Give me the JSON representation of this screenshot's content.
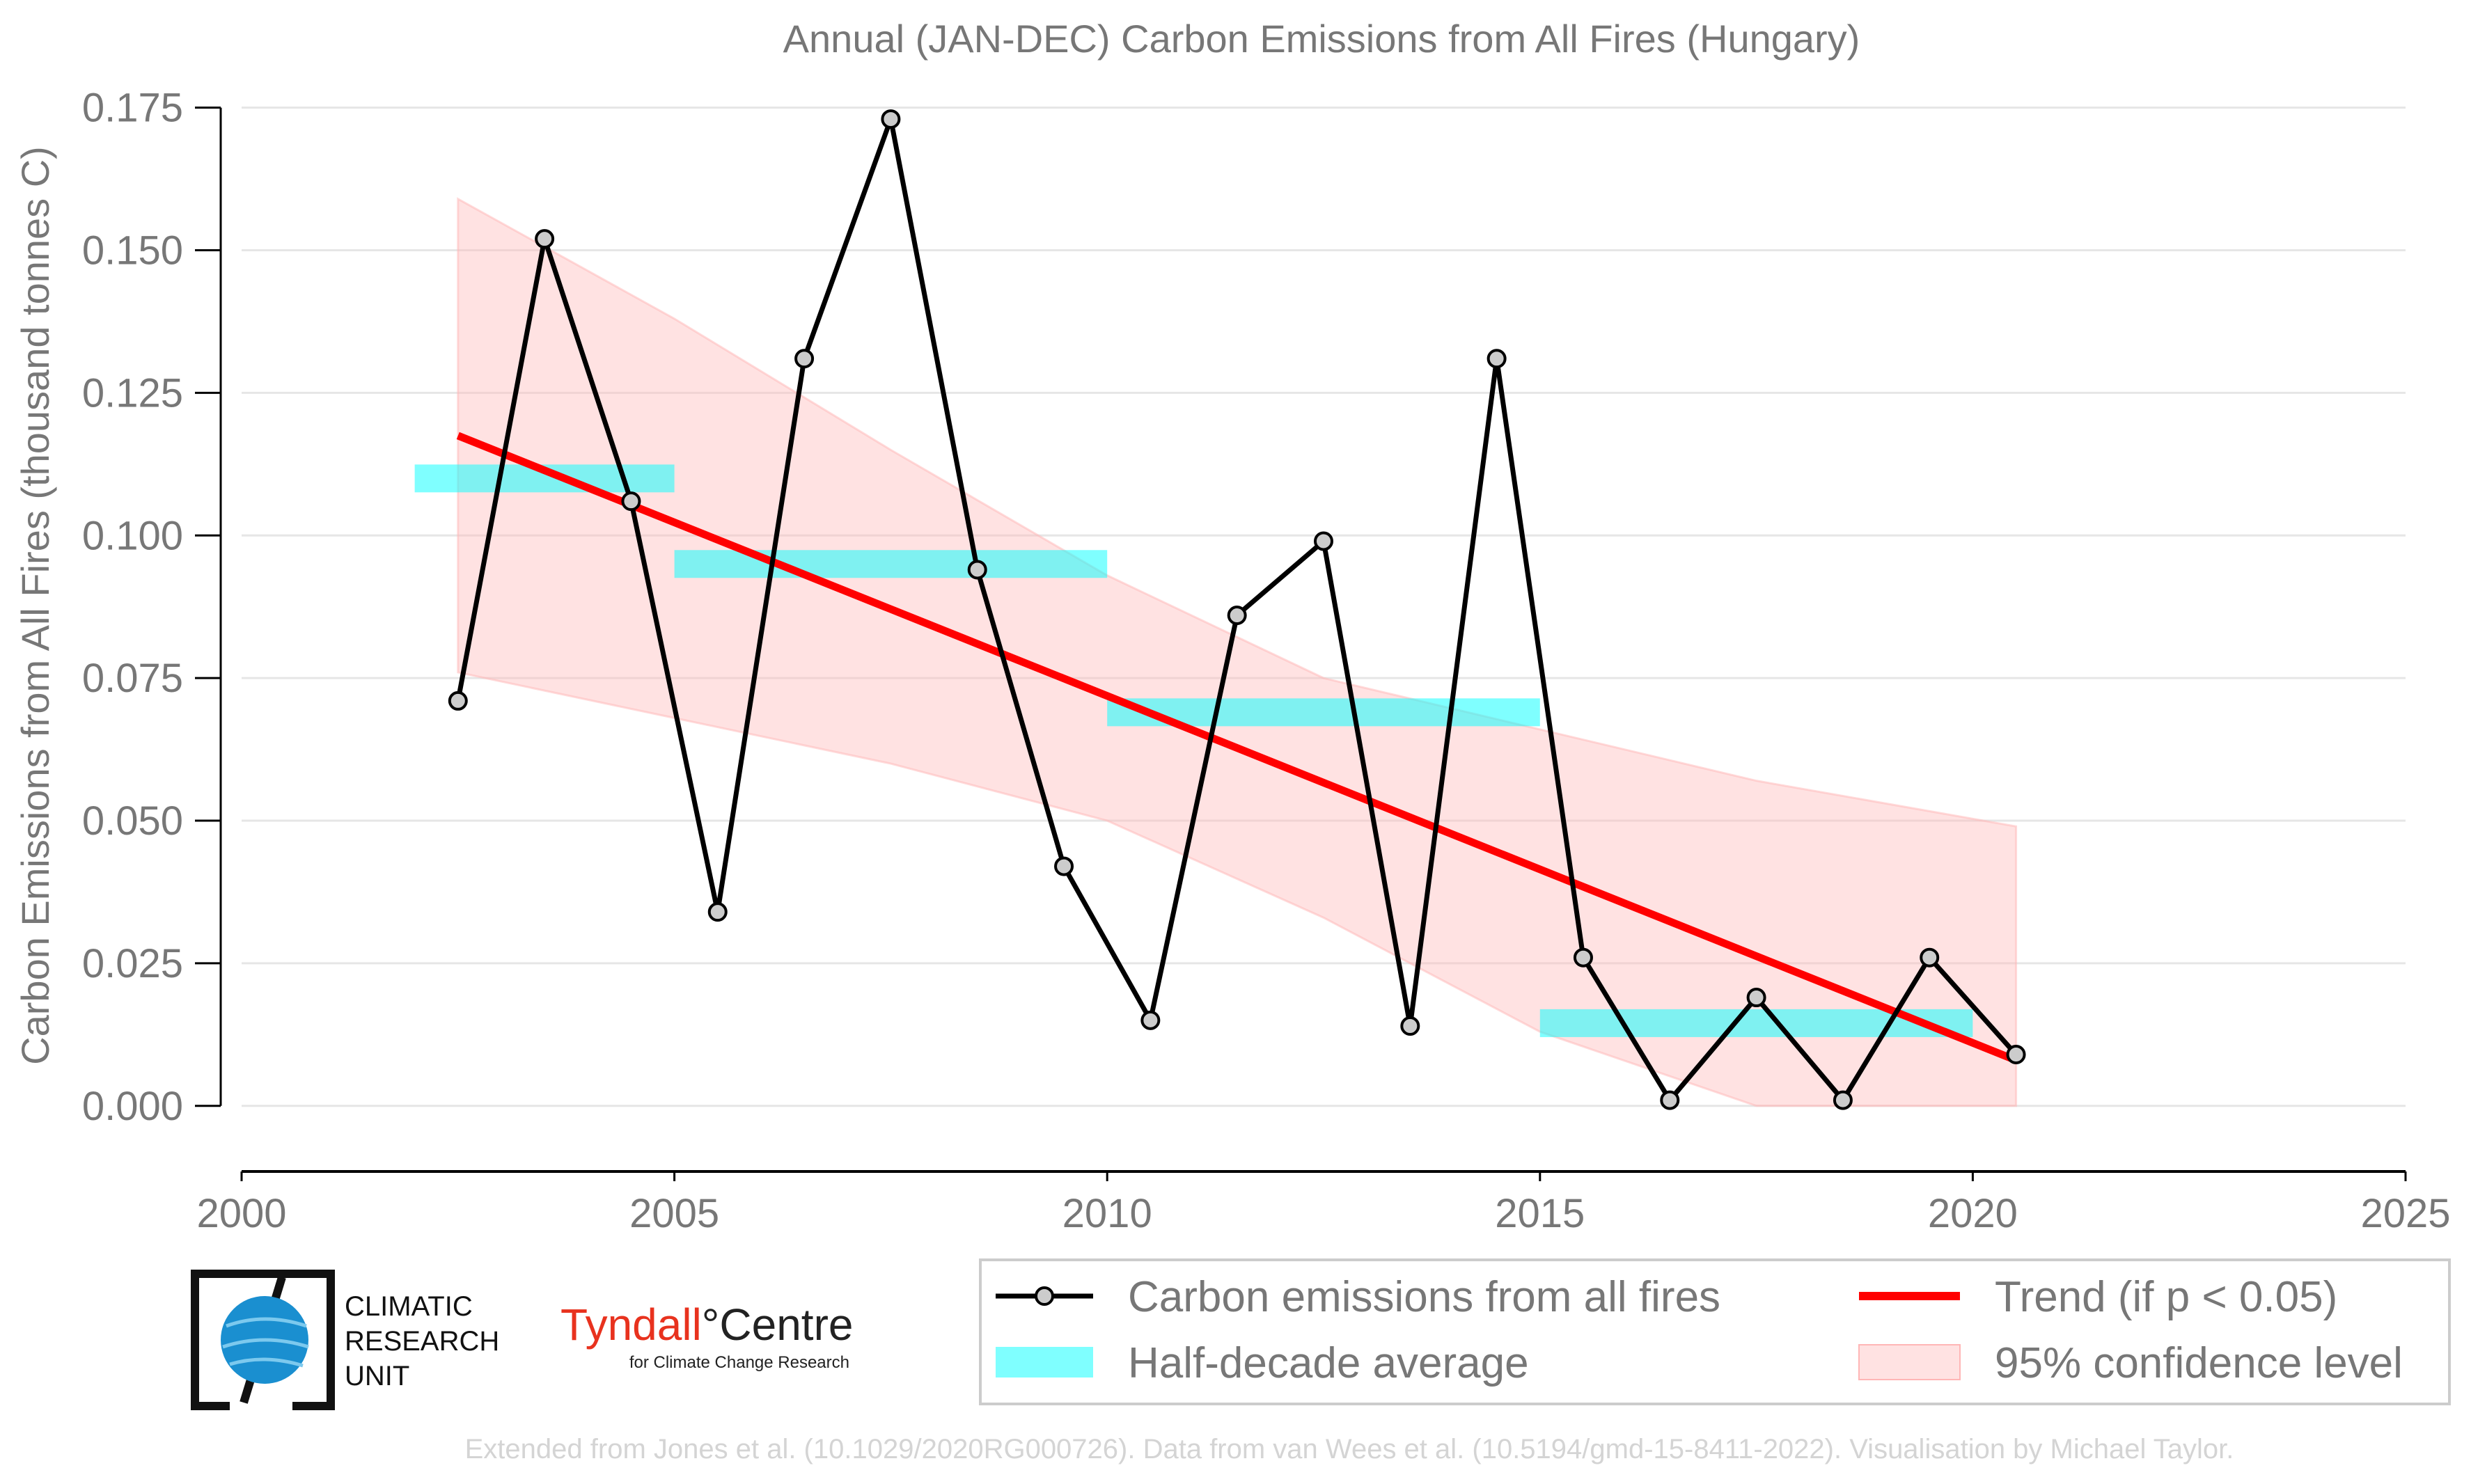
{
  "chart_data": {
    "type": "line",
    "title": "Annual (JAN-DEC) Carbon Emissions from All Fires (Hungary)",
    "ylabel": "Carbon Emissions from All Fires (thousand tonnes C)",
    "xlabel": "",
    "xlim": [
      2000,
      2025
    ],
    "ylim": [
      -0.0115,
      0.1785
    ],
    "x_ticks": [
      "2000",
      "2005",
      "2010",
      "2015",
      "2020",
      "2025"
    ],
    "y_ticks": [
      "0.000",
      "0.025",
      "0.050",
      "0.075",
      "0.100",
      "0.125",
      "0.150",
      "0.175"
    ],
    "grid": "horizontal",
    "series": [
      {
        "name": "Carbon emissions from all fires",
        "color": "#000000",
        "x": [
          2002.5,
          2003.5,
          2004.5,
          2005.5,
          2006.5,
          2007.5,
          2008.5,
          2009.5,
          2010.5,
          2011.5,
          2012.5,
          2013.5,
          2014.5,
          2015.5,
          2016.5,
          2017.5,
          2018.5,
          2019.5,
          2020.5
        ],
        "values": [
          0.071,
          0.152,
          0.106,
          0.034,
          0.131,
          0.173,
          0.094,
          0.042,
          0.015,
          0.086,
          0.099,
          0.014,
          0.131,
          0.026,
          0.001,
          0.019,
          0.001,
          0.026,
          0.009
        ]
      },
      {
        "name": "Half-decade average",
        "color": "#00ffff",
        "segments": [
          {
            "x0": 2002,
            "x1": 2005,
            "y": 0.11
          },
          {
            "x0": 2005,
            "x1": 2010,
            "y": 0.095
          },
          {
            "x0": 2010,
            "x1": 2015,
            "y": 0.069
          },
          {
            "x0": 2015,
            "x1": 2020,
            "y": 0.0145
          }
        ]
      },
      {
        "name": "Trend (if p < 0.05)",
        "color": "#ff0000",
        "x": [
          2002.5,
          2020.5
        ],
        "values": [
          0.1175,
          0.008
        ]
      },
      {
        "name": "95% confidence level",
        "color": "#ffb6b6",
        "x": [
          2002.5,
          2005,
          2007.5,
          2010,
          2012.5,
          2015,
          2017.5,
          2020.5
        ],
        "upper": [
          0.159,
          0.138,
          0.115,
          0.093,
          0.075,
          0.066,
          0.057,
          0.049
        ],
        "lower": [
          0.076,
          0.068,
          0.06,
          0.05,
          0.033,
          0.013,
          0.0,
          0.0
        ]
      }
    ],
    "legend": {
      "position": "bottom-right",
      "items": [
        "Carbon emissions from all fires",
        "Trend (if p < 0.05)",
        "Half-decade average",
        "95% confidence level"
      ]
    }
  },
  "logos": {
    "cru": [
      "CLIMATIC",
      "RESEARCH",
      "UNIT"
    ],
    "tyndall_main": "Tyndall",
    "tyndall_degree": "°",
    "tyndall_centre": "Centre",
    "tyndall_sub": "for Climate Change Research"
  },
  "footer": "Extended from Jones et al. (10.1029/2020RG000726). Data from van Wees et al. (10.5194/gmd-15-8411-2022). Visualisation by Michael Taylor."
}
